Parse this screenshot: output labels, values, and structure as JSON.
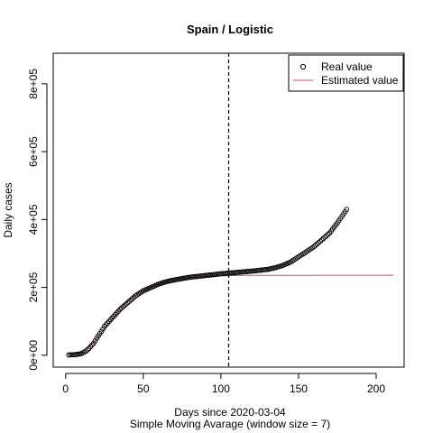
{
  "chart_data": {
    "type": "scatter",
    "title": "Spain / Logistic",
    "xlabel": "Days since 2020-03-04",
    "subtitle": "Simple Moving Avarage (window size = 7)",
    "ylabel": "Daily cases",
    "xlim": [
      -8,
      218
    ],
    "ylim": [
      -35000,
      890000
    ],
    "x_ticks": [
      0,
      50,
      100,
      150,
      200
    ],
    "x_tick_labels": [
      "0",
      "50",
      "100",
      "150",
      "200"
    ],
    "y_ticks": [
      0,
      200000,
      400000,
      600000,
      800000
    ],
    "y_tick_labels": [
      "0e+00",
      "2e+05",
      "4e+05",
      "6e+05",
      "8e+05"
    ],
    "vline_x": 105,
    "legend": {
      "position": "top-right",
      "entries": [
        {
          "label": "Real value",
          "kind": "point"
        },
        {
          "label": "Estimated value",
          "kind": "line"
        }
      ]
    },
    "colors": {
      "real": "#000000",
      "estimated": "#c0506a"
    },
    "series": [
      {
        "name": "Real value",
        "kind": "points",
        "x_range": [
          2,
          181
        ],
        "knots": [
          [
            2,
            1000
          ],
          [
            5,
            1500
          ],
          [
            8,
            3000
          ],
          [
            10,
            5000
          ],
          [
            13,
            12000
          ],
          [
            15,
            20000
          ],
          [
            18,
            35000
          ],
          [
            20,
            50000
          ],
          [
            23,
            70000
          ],
          [
            25,
            85000
          ],
          [
            30,
            110000
          ],
          [
            35,
            135000
          ],
          [
            40,
            155000
          ],
          [
            45,
            175000
          ],
          [
            50,
            190000
          ],
          [
            55,
            200000
          ],
          [
            60,
            210000
          ],
          [
            65,
            217000
          ],
          [
            70,
            222000
          ],
          [
            80,
            230000
          ],
          [
            90,
            235000
          ],
          [
            100,
            240000
          ],
          [
            110,
            244000
          ],
          [
            120,
            248000
          ],
          [
            130,
            253000
          ],
          [
            135,
            258000
          ],
          [
            140,
            265000
          ],
          [
            145,
            275000
          ],
          [
            150,
            290000
          ],
          [
            155,
            305000
          ],
          [
            160,
            320000
          ],
          [
            165,
            340000
          ],
          [
            170,
            360000
          ],
          [
            175,
            390000
          ],
          [
            181,
            430000
          ]
        ]
      },
      {
        "name": "Estimated value",
        "kind": "line",
        "x_range": [
          2,
          211
        ],
        "knots": [
          [
            2,
            2000
          ],
          [
            5,
            4000
          ],
          [
            10,
            10000
          ],
          [
            15,
            25000
          ],
          [
            20,
            48000
          ],
          [
            25,
            78000
          ],
          [
            30,
            108000
          ],
          [
            35,
            135000
          ],
          [
            40,
            158000
          ],
          [
            45,
            176000
          ],
          [
            50,
            190000
          ],
          [
            55,
            202000
          ],
          [
            60,
            211000
          ],
          [
            65,
            218000
          ],
          [
            70,
            223000
          ],
          [
            80,
            229000
          ],
          [
            90,
            232000
          ],
          [
            100,
            234000
          ],
          [
            110,
            235000
          ],
          [
            120,
            235500
          ],
          [
            211,
            236000
          ]
        ]
      }
    ]
  }
}
